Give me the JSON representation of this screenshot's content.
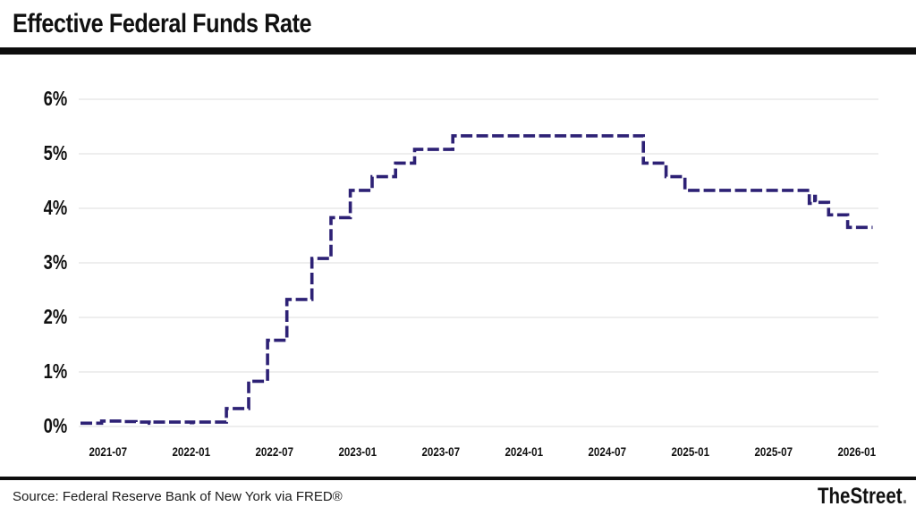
{
  "header": {
    "title": "Effective Federal Funds Rate"
  },
  "footer": {
    "source": "Source: Federal Reserve Bank of New York via FRED®",
    "brand": "TheStreet",
    "brand_dot": "."
  },
  "colors": {
    "line": "#2d2175",
    "grid": "#e9e9e9",
    "rule": "#0d0d0d",
    "text": "#111111"
  },
  "chart_data": {
    "type": "line",
    "subtype": "step-after",
    "title": "Effective Federal Funds Rate",
    "unit": "percent",
    "grid": "horizontal",
    "legend": "none",
    "ylim": [
      0,
      6
    ],
    "y_ticks": [
      "0%",
      "1%",
      "2%",
      "3%",
      "4%",
      "5%",
      "6%"
    ],
    "y_tick_values": [
      0,
      1,
      2,
      3,
      4,
      5,
      6
    ],
    "x_ticks": [
      "2021-07",
      "2022-01",
      "2022-07",
      "2023-01",
      "2023-07",
      "2024-01",
      "2024-07",
      "2025-01",
      "2025-07",
      "2026-01"
    ],
    "x_range": [
      "2021-05",
      "2026-02"
    ],
    "series": [
      {
        "name": "Effective Federal Funds Rate",
        "points": [
          {
            "date": "2021-05-01",
            "value": 0.06
          },
          {
            "date": "2021-06-17",
            "value": 0.1
          },
          {
            "date": "2021-08-02",
            "value": 0.09
          },
          {
            "date": "2021-09-01",
            "value": 0.08
          },
          {
            "date": "2021-09-30",
            "value": 0.06
          },
          {
            "date": "2021-10-04",
            "value": 0.08
          },
          {
            "date": "2021-12-31",
            "value": 0.07
          },
          {
            "date": "2022-01-04",
            "value": 0.08
          },
          {
            "date": "2022-03-17",
            "value": 0.33
          },
          {
            "date": "2022-05-05",
            "value": 0.83
          },
          {
            "date": "2022-06-16",
            "value": 1.58
          },
          {
            "date": "2022-07-28",
            "value": 2.33
          },
          {
            "date": "2022-09-22",
            "value": 3.08
          },
          {
            "date": "2022-11-03",
            "value": 3.83
          },
          {
            "date": "2022-12-15",
            "value": 4.33
          },
          {
            "date": "2023-02-02",
            "value": 4.58
          },
          {
            "date": "2023-03-23",
            "value": 4.83
          },
          {
            "date": "2023-05-04",
            "value": 5.08
          },
          {
            "date": "2023-07-27",
            "value": 5.33
          },
          {
            "date": "2024-09-19",
            "value": 4.83
          },
          {
            "date": "2024-11-08",
            "value": 4.58
          },
          {
            "date": "2024-12-19",
            "value": 4.33
          },
          {
            "date": "2025-09-18",
            "value": 4.09
          },
          {
            "date": "2025-09-30",
            "value": 4.22
          },
          {
            "date": "2025-10-01",
            "value": 4.11
          },
          {
            "date": "2025-10-30",
            "value": 3.88
          },
          {
            "date": "2025-12-11",
            "value": 3.65
          },
          {
            "date": "2026-02-05",
            "value": 3.65
          }
        ]
      }
    ]
  }
}
